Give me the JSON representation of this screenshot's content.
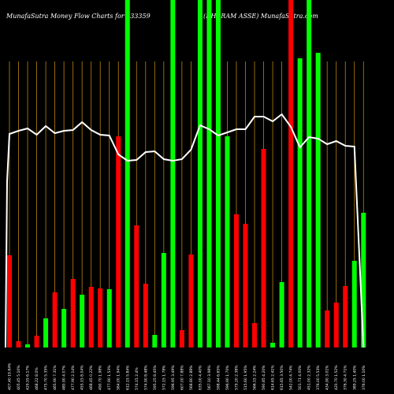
{
  "header": {
    "left": "MunafaSutra  Money Flow  Charts for 533359",
    "right": "(DHARAM ASSE) MunafaSutra.com"
  },
  "colors": {
    "background": "#000000",
    "up": "#00ff00",
    "down": "#ff0000",
    "line": "#ffffff",
    "grid": "#b8860b"
  },
  "chart_data": {
    "type": "bar",
    "title": "MunafaSutra  Money Flow  Charts for 533359",
    "subtitle": "(DHARAM ASSE) MunafaSutra.com",
    "grid": true,
    "x_tick_labels": [
      "407.40 19.84%",
      "405.45 5.10%",
      "429.55 6.17%",
      "468.22 8.0%",
      "475.70 5.35%",
      "465.90 7.31%",
      "480.90 4.07%",
      "477.90 2.14%",
      "455.15 8.04%",
      "468.45 0.22%",
      "490.70 1.98%",
      "477.90 1.53%",
      "564.00 1.94%",
      "612.15 5.84%",
      "574.15 2.4%",
      "574.90 8.48%",
      "595.25 8.45%",
      "572.15 1.78%",
      "596.95 3.49%",
      "607.00 7.88%",
      "568.80 2.88%",
      "635.00 4.40%",
      "567.10 3.98%",
      "598.44 6.65%",
      "596.90 1.70%",
      "579.20 2.38%",
      "515.60 1.95%",
      "566.15 2.24%",
      "590.85 4.20%",
      "614.65 2.41%",
      "615.65 3.50%",
      "542.00 4.74%",
      "501.71 4.00%",
      "451.00 2.32%",
      "376.00 5.53%",
      "434.90 3.01%",
      "420.70 1.52%",
      "376.30 4.71%",
      "389.25 1.40%",
      "376.00 1.10%",
      "392.20 1.21%",
      "365.15 2.02%",
      "379.00 3.04%",
      "376.00 1.24%",
      "376.30 3.73%"
    ],
    "bar_colors": [
      "red",
      "red",
      "green",
      "red",
      "green",
      "red",
      "green",
      "red",
      "green",
      "red",
      "red",
      "green",
      "red",
      "green",
      "red",
      "red",
      "green",
      "green",
      "green",
      "red",
      "red",
      "green",
      "green",
      "green",
      "green",
      "red",
      "red",
      "red",
      "red",
      "green",
      "green",
      "red",
      "green",
      "green",
      "green",
      "red",
      "red",
      "red",
      "green",
      "green",
      "green",
      "green",
      "red",
      "red",
      "red"
    ],
    "values": [
      117,
      8,
      4,
      15,
      37,
      70,
      49,
      87,
      67,
      77,
      75,
      74,
      268,
      441,
      155,
      81,
      16,
      120,
      441,
      22,
      118,
      441,
      441,
      441,
      268,
      169,
      157,
      31,
      252,
      6,
      83,
      441,
      367,
      441,
      374,
      47,
      57,
      78,
      110,
      171,
      0,
      0,
      0,
      0,
      0
    ],
    "line_values": [
      271,
      275,
      278,
      270,
      281,
      272,
      275,
      276,
      286,
      276,
      270,
      269,
      245,
      237,
      238,
      248,
      249,
      239,
      237,
      239,
      251,
      282,
      277,
      269,
      273,
      277,
      277,
      293,
      293,
      287,
      296,
      280,
      254,
      267,
      265,
      258,
      262,
      256,
      255,
      0,
      0,
      0,
      0,
      0,
      0
    ],
    "ylim": [
      0,
      441
    ]
  }
}
